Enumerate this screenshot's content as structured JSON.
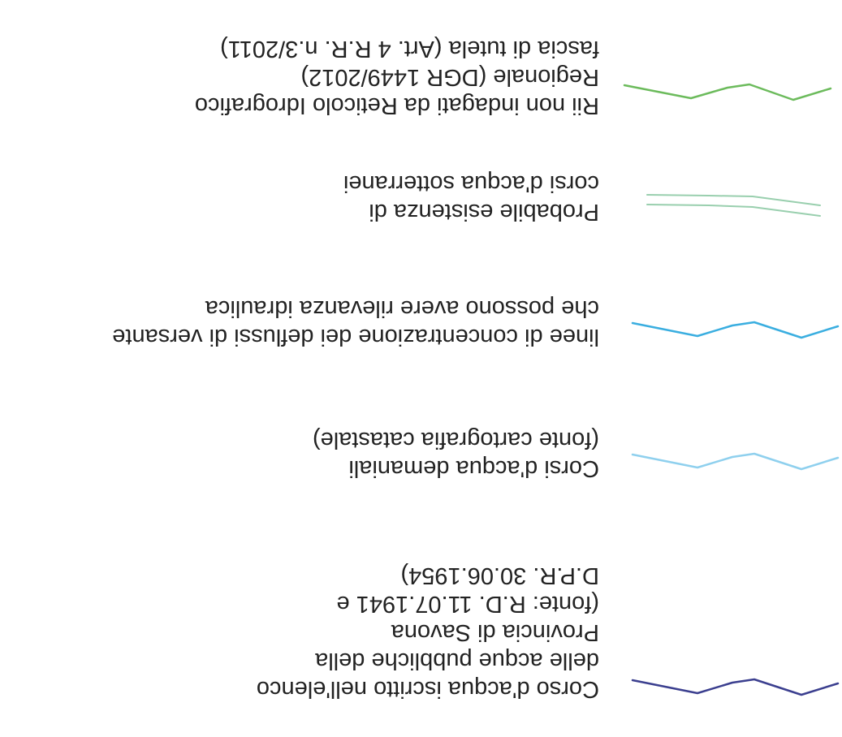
{
  "legend": {
    "items": [
      {
        "lines": [
          "Corso d'acqua iscritto nell'elenco",
          "delle acque pubbliche della",
          "Provincia di Savona",
          "(fonte: R.D. 11.07.1941 e",
          "D.P.R. 30.06.1954)"
        ],
        "color": "#3b3f8f",
        "icon": "wavy-line",
        "style": "single"
      },
      {
        "lines": [
          "Corsi d'acqua demaniali",
          "(fonte cartografia catastale)"
        ],
        "color": "#8fd0ee",
        "icon": "wavy-line",
        "style": "single"
      },
      {
        "lines": [
          "linee di concentrazione dei deflussi di versante",
          "che possono avere rilevanza idraulica"
        ],
        "color": "#3aaee0",
        "icon": "wavy-line",
        "style": "single"
      },
      {
        "lines": [
          "Probabile esistenza di",
          "corsi d'acqua sotterranei"
        ],
        "color": "#99cfae",
        "icon": "double-line",
        "style": "double"
      },
      {
        "lines": [
          "Rii non indagati da Reticolo Idrografico",
          "Regionale (DGR 1449/2012)",
          "fascia di tutela (Art. 4 R.R. n.3/2011)"
        ],
        "color": "#6cbb5c",
        "icon": "wavy-line",
        "style": "single"
      }
    ]
  }
}
